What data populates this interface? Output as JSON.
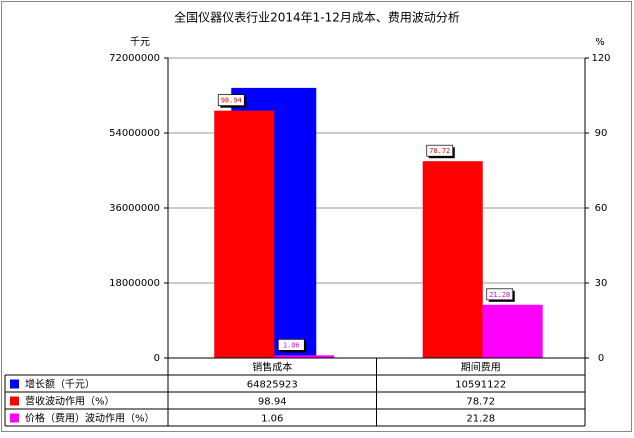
{
  "chart_data": {
    "type": "bar",
    "title": "全国仪器仪表行业2014年1-12月成本、费用波动分析",
    "y_label": "千元",
    "y2_label": "%",
    "categories": [
      "销售成本",
      "期间费用"
    ],
    "series": [
      {
        "name": "增长额（千元）",
        "color": "#0000ff",
        "values": [
          64825923,
          10591122
        ],
        "axis": "y"
      },
      {
        "name": "营收波动作用（%）",
        "color": "#ff0000",
        "values": [
          98.94,
          78.72
        ],
        "axis": "y2"
      },
      {
        "name": "价格（费用）波动作用（%）",
        "color": "#ff00ff",
        "values": [
          1.06,
          21.28
        ],
        "axis": "y2"
      }
    ],
    "ylim": [
      0,
      72000000
    ],
    "yticks": [
      0,
      18000000,
      36000000,
      54000000,
      72000000
    ],
    "y2lim": [
      0,
      120
    ],
    "y2ticks": [
      0,
      30,
      60,
      90,
      120
    ],
    "grid": true
  }
}
